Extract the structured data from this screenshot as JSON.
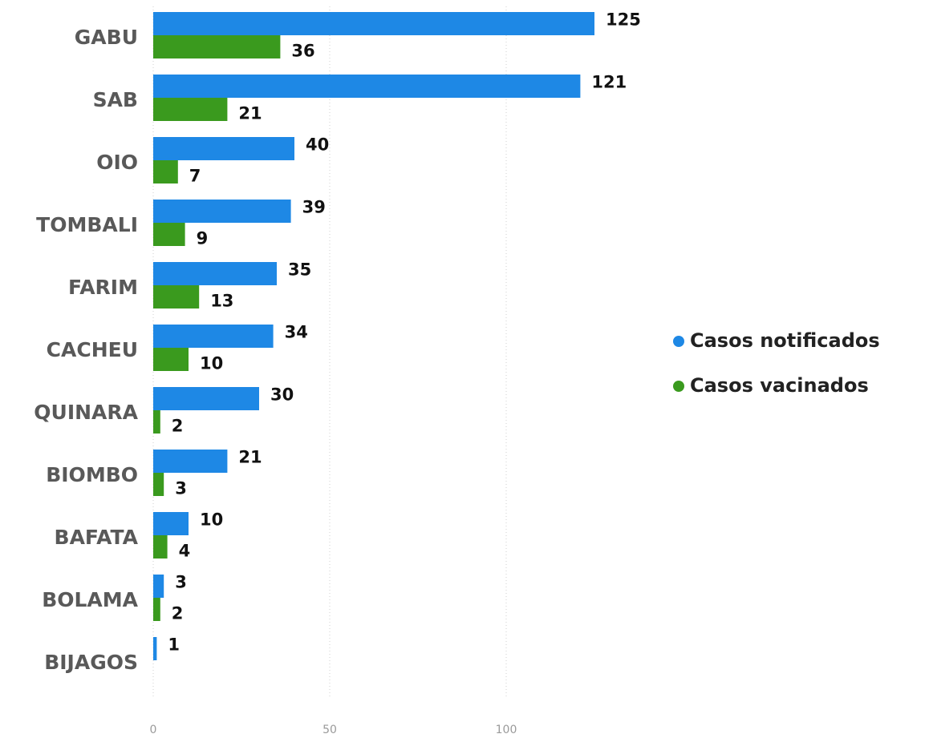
{
  "chart_data": {
    "type": "bar",
    "orientation": "horizontal",
    "categories": [
      "GABU",
      "SAB",
      "OIO",
      "TOMBALI",
      "FARIM",
      "CACHEU",
      "QUINARA",
      "BIOMBO",
      "BAFATA",
      "BOLAMA",
      "BIJAGOS"
    ],
    "series": [
      {
        "name": "Casos notificados",
        "color": "#1e88e5",
        "values": [
          125,
          121,
          40,
          39,
          35,
          34,
          30,
          21,
          10,
          3,
          1
        ]
      },
      {
        "name": "Casos vacinados",
        "color": "#3a9a1e",
        "values": [
          36,
          21,
          7,
          9,
          13,
          10,
          2,
          3,
          4,
          2,
          null
        ]
      }
    ],
    "xticks": [
      0,
      50,
      100
    ],
    "xlim": [
      0,
      140
    ],
    "legend_position": "right",
    "grid": "vertical dotted"
  }
}
